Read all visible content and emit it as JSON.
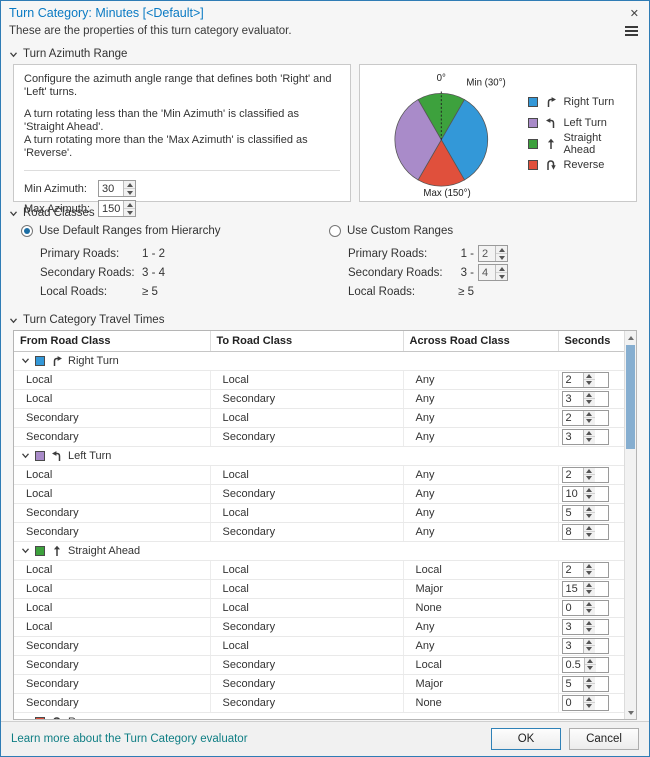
{
  "dialog": {
    "title": "Turn Category: Minutes [<Default>]",
    "subtitle": "These are the properties of this turn category evaluator.",
    "close": "✕"
  },
  "azimuth": {
    "section_title": "Turn Azimuth Range",
    "desc1": "Configure the azimuth angle range that defines both 'Right' and 'Left' turns.",
    "desc2": "A turn rotating less than the 'Min Azimuth' is classified as 'Straight Ahead'.",
    "desc3": "A turn rotating more than the 'Max Azimuth' is classified as 'Reverse'.",
    "min_label": "Min Azimuth:",
    "min_value": "30",
    "max_label": "Max Azimuth:",
    "max_value": "150",
    "pie": {
      "zero_label": "0°",
      "min_label": "Min (30°)",
      "max_label": "Max (150°)"
    },
    "legend": [
      {
        "label": "Right Turn",
        "color": "#3398d8",
        "icon": "right-turn"
      },
      {
        "label": "Left Turn",
        "color": "#a98bc9",
        "icon": "left-turn"
      },
      {
        "label": "Straight Ahead",
        "color": "#3da13d",
        "icon": "straight"
      },
      {
        "label": "Reverse",
        "color": "#e0503c",
        "icon": "reverse"
      }
    ]
  },
  "road_classes": {
    "section_title": "Road Classes",
    "default_radio": "Use Default Ranges from Hierarchy",
    "custom_radio": "Use Custom Ranges",
    "default_rows": [
      {
        "label": "Primary Roads:",
        "value": "1 - 2"
      },
      {
        "label": "Secondary Roads:",
        "value": "3 - 4"
      },
      {
        "label": "Local Roads:",
        "value": "≥ 5"
      }
    ],
    "custom_rows": [
      {
        "label": "Primary Roads:",
        "prefix": "1 -",
        "value": "2"
      },
      {
        "label": "Secondary Roads:",
        "prefix": "3 -",
        "value": "4"
      },
      {
        "label": "Local Roads:",
        "prefix": "≥ 5",
        "value": ""
      }
    ]
  },
  "travel_times": {
    "section_title": "Turn Category Travel Times",
    "columns": [
      "From Road Class",
      "To Road Class",
      "Across Road Class",
      "Seconds"
    ],
    "groups": [
      {
        "name": "Right Turn",
        "color": "#3398d8",
        "icon": "right-turn",
        "rows": [
          {
            "from": "Local",
            "to": "Local",
            "across": "Any",
            "seconds": "2"
          },
          {
            "from": "Local",
            "to": "Secondary",
            "across": "Any",
            "seconds": "3"
          },
          {
            "from": "Secondary",
            "to": "Local",
            "across": "Any",
            "seconds": "2"
          },
          {
            "from": "Secondary",
            "to": "Secondary",
            "across": "Any",
            "seconds": "3"
          }
        ]
      },
      {
        "name": "Left Turn",
        "color": "#a98bc9",
        "icon": "left-turn",
        "rows": [
          {
            "from": "Local",
            "to": "Local",
            "across": "Any",
            "seconds": "2"
          },
          {
            "from": "Local",
            "to": "Secondary",
            "across": "Any",
            "seconds": "10"
          },
          {
            "from": "Secondary",
            "to": "Local",
            "across": "Any",
            "seconds": "5"
          },
          {
            "from": "Secondary",
            "to": "Secondary",
            "across": "Any",
            "seconds": "8"
          }
        ]
      },
      {
        "name": "Straight Ahead",
        "color": "#3da13d",
        "icon": "straight",
        "rows": [
          {
            "from": "Local",
            "to": "Local",
            "across": "Local",
            "seconds": "2"
          },
          {
            "from": "Local",
            "to": "Local",
            "across": "Major",
            "seconds": "15"
          },
          {
            "from": "Local",
            "to": "Local",
            "across": "None",
            "seconds": "0"
          },
          {
            "from": "Local",
            "to": "Secondary",
            "across": "Any",
            "seconds": "3"
          },
          {
            "from": "Secondary",
            "to": "Local",
            "across": "Any",
            "seconds": "3"
          },
          {
            "from": "Secondary",
            "to": "Secondary",
            "across": "Local",
            "seconds": "0.5"
          },
          {
            "from": "Secondary",
            "to": "Secondary",
            "across": "Major",
            "seconds": "5"
          },
          {
            "from": "Secondary",
            "to": "Secondary",
            "across": "None",
            "seconds": "0"
          }
        ]
      },
      {
        "name": "Reverse",
        "color": "#e0503c",
        "icon": "reverse",
        "rows": []
      }
    ]
  },
  "footer": {
    "link": "Learn more about the Turn Category evaluator",
    "ok": "OK",
    "cancel": "Cancel"
  }
}
